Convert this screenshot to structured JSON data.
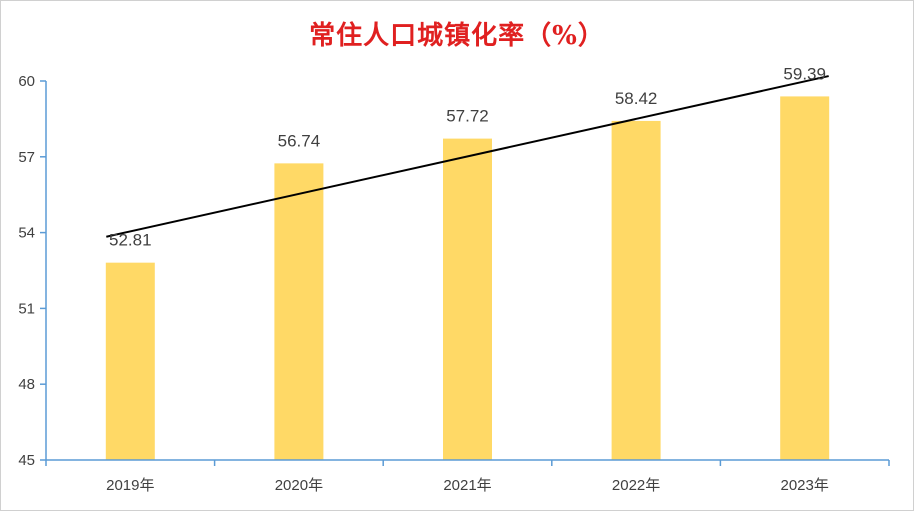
{
  "chart_data": {
    "type": "bar",
    "title": "常住人口城镇化率（%）",
    "categories": [
      "2019年",
      "2020年",
      "2021年",
      "2022年",
      "2023年"
    ],
    "values": [
      52.81,
      56.74,
      57.72,
      58.42,
      59.39
    ],
    "data_labels": [
      "52.81",
      "56.74",
      "57.72",
      "58.42",
      "59.39"
    ],
    "ylim": [
      45,
      60
    ],
    "yticks": [
      45,
      48,
      51,
      54,
      57,
      60
    ],
    "trendline": {
      "type": "linear",
      "color": "#000000"
    },
    "xlabel": "",
    "ylabel": "",
    "grid": false,
    "legend": "none",
    "colors": {
      "bar": "#FFD966",
      "axis": "#5B9BD5",
      "title": "#E02020",
      "text": "#404040"
    }
  }
}
